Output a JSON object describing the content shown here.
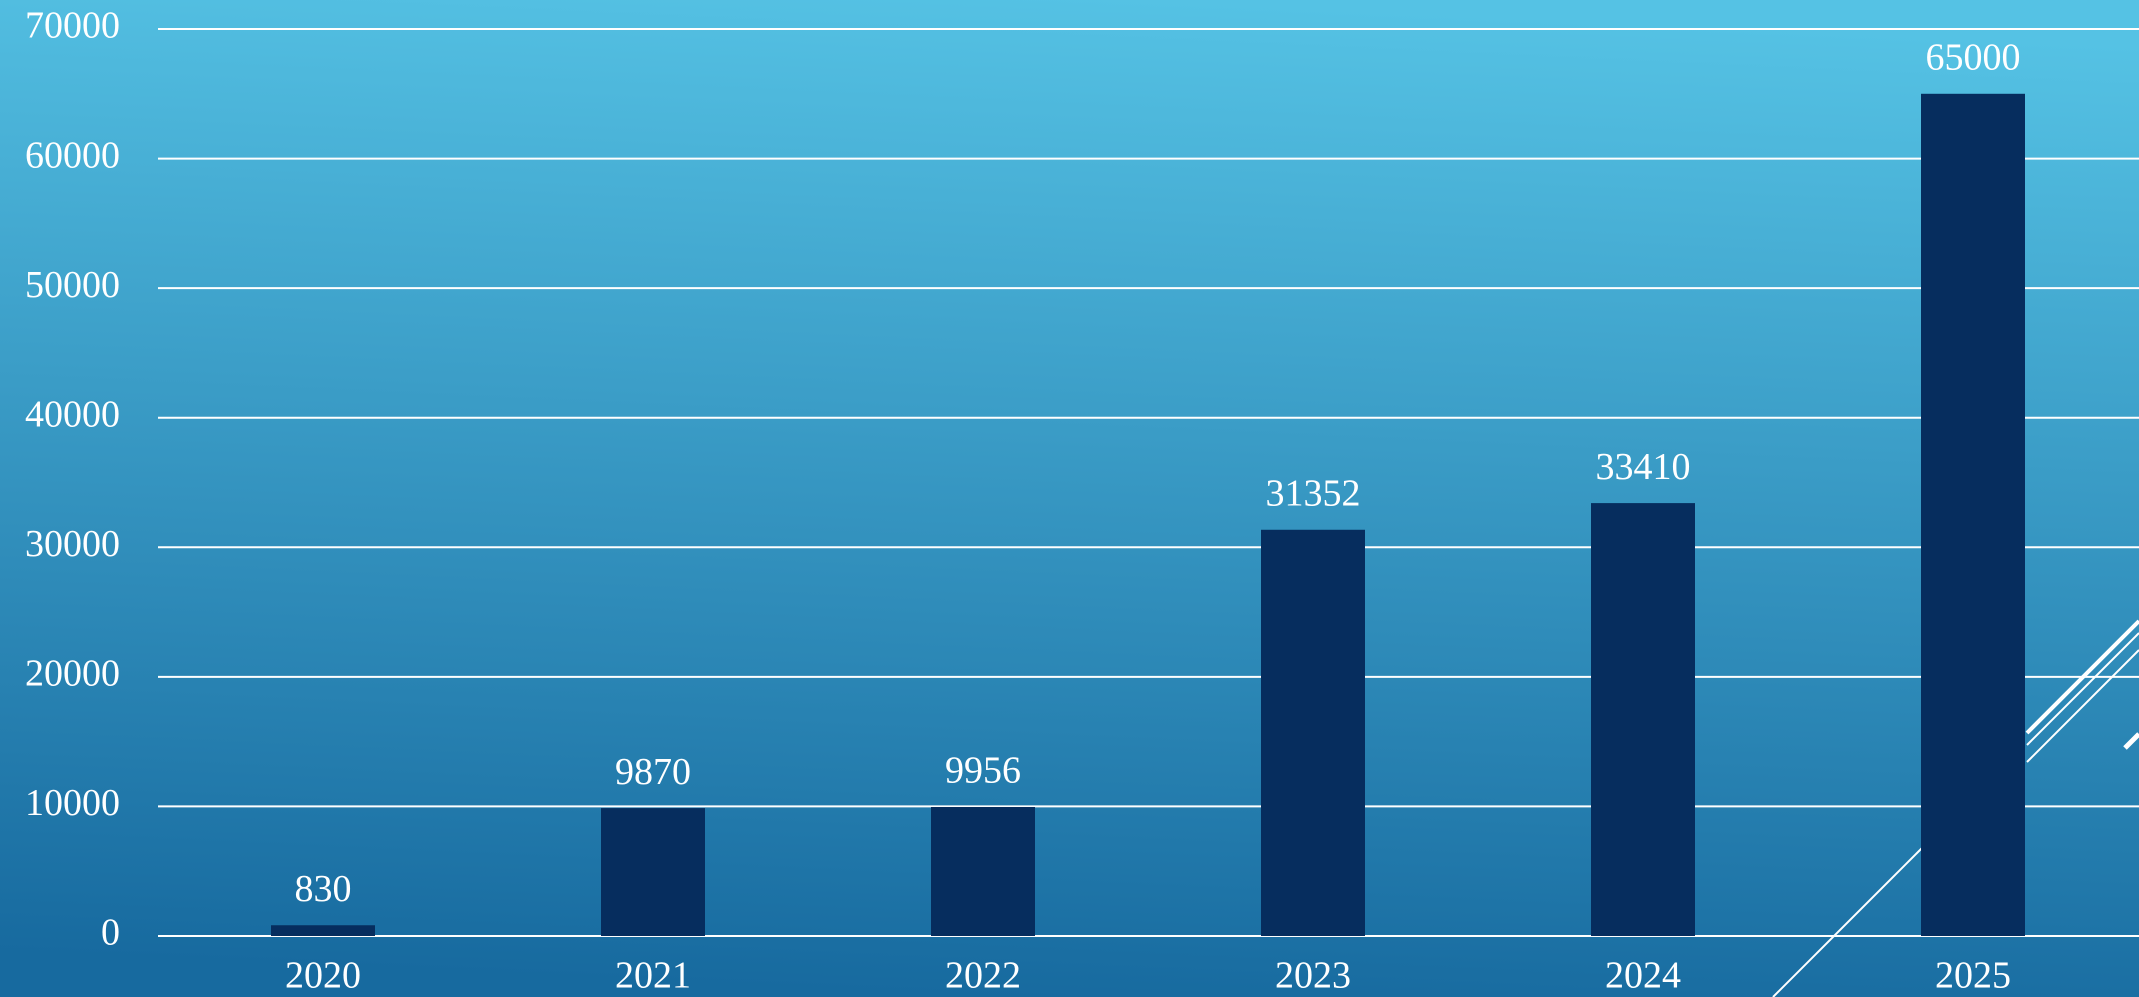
{
  "chart_data": {
    "type": "bar",
    "categories": [
      "2020",
      "2021",
      "2022",
      "2023",
      "2024",
      "2025"
    ],
    "values": [
      830,
      9870,
      9956,
      31352,
      33410,
      65000
    ],
    "color": "#062d5e",
    "ylim": [
      0,
      70000
    ],
    "yticks": [
      0,
      10000,
      20000,
      30000,
      40000,
      50000,
      60000,
      70000
    ],
    "grid": true
  }
}
